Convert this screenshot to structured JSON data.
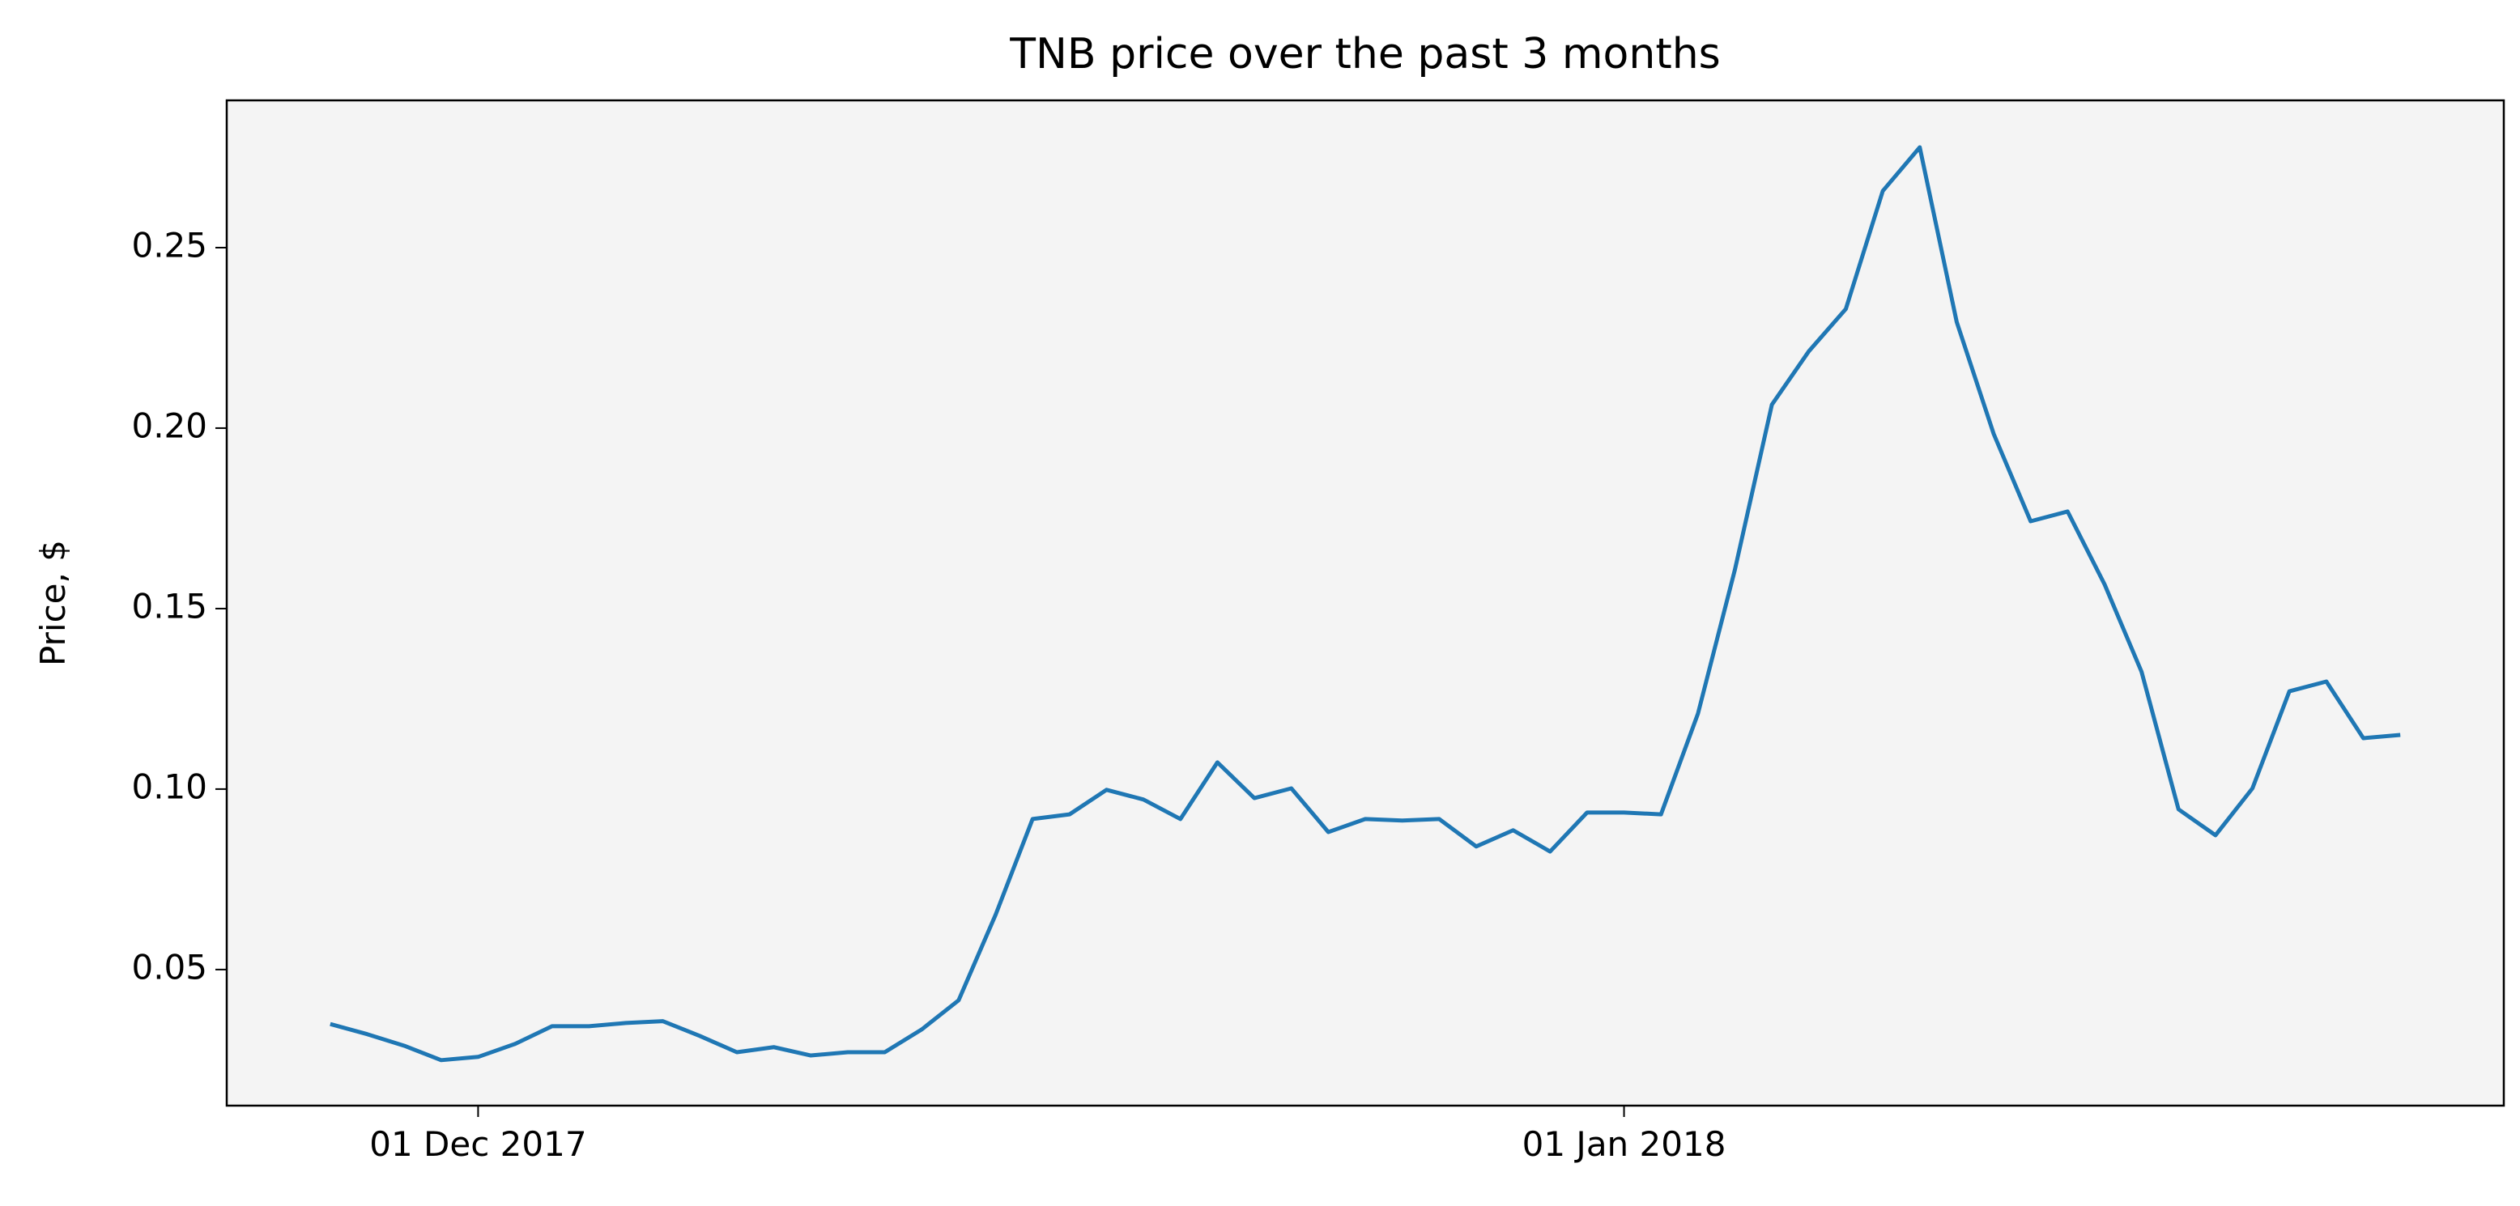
{
  "chart_data": {
    "type": "line",
    "title": "TNB price over the past 3 months",
    "y_label": "Price, $",
    "x": [
      "2017-11-27",
      "2017-11-28",
      "2017-11-29",
      "2017-11-30",
      "2017-12-01",
      "2017-12-02",
      "2017-12-03",
      "2017-12-04",
      "2017-12-05",
      "2017-12-06",
      "2017-12-07",
      "2017-12-08",
      "2017-12-09",
      "2017-12-10",
      "2017-12-11",
      "2017-12-12",
      "2017-12-13",
      "2017-12-14",
      "2017-12-15",
      "2017-12-16",
      "2017-12-17",
      "2017-12-18",
      "2017-12-19",
      "2017-12-20",
      "2017-12-21",
      "2017-12-22",
      "2017-12-23",
      "2017-12-24",
      "2017-12-25",
      "2017-12-26",
      "2017-12-27",
      "2017-12-28",
      "2017-12-29",
      "2017-12-30",
      "2017-12-31",
      "2018-01-01",
      "2018-01-02",
      "2018-01-03",
      "2018-01-04",
      "2018-01-05",
      "2018-01-06",
      "2018-01-07",
      "2018-01-08",
      "2018-01-09",
      "2018-01-10",
      "2018-01-11",
      "2018-01-12",
      "2018-01-13",
      "2018-01-14",
      "2018-01-15",
      "2018-01-16",
      "2018-01-17",
      "2018-01-18",
      "2018-01-19",
      "2018-01-20",
      "2018-01-21",
      "2018-01-22"
    ],
    "values": [
      0.0349,
      0.0321,
      0.0289,
      0.0249,
      0.0258,
      0.0294,
      0.0343,
      0.0343,
      0.0352,
      0.0357,
      0.0316,
      0.0271,
      0.0285,
      0.0262,
      0.0271,
      0.0271,
      0.0334,
      0.0415,
      0.0652,
      0.0917,
      0.093,
      0.0998,
      0.0971,
      0.0917,
      0.1074,
      0.0975,
      0.1002,
      0.0881,
      0.0917,
      0.0913,
      0.0917,
      0.0841,
      0.0886,
      0.0827,
      0.0935,
      0.0935,
      0.093,
      0.1209,
      0.1608,
      0.2065,
      0.2213,
      0.233,
      0.2657,
      0.2778,
      0.2294,
      0.1984,
      0.1742,
      0.1769,
      0.1567,
      0.1325,
      0.0944,
      0.0872,
      0.1002,
      0.1271,
      0.1298,
      0.1141,
      0.115
    ],
    "color": "#1f77b4",
    "background": "#f4f4f4",
    "xlim": [
      "2017-11-24T04:48:00Z",
      "2018-01-24T19:12:00Z"
    ],
    "xticks": [
      {
        "value": "2017-12-01",
        "label": "01 Dec 2017"
      },
      {
        "value": "2018-01-01",
        "label": "01 Jan 2018"
      }
    ],
    "ylim": [
      0.0123,
      0.2908
    ],
    "yticks": [
      0.05,
      {
        "value": 0.1,
        "label": "0.10"
      },
      0.15,
      {
        "value": 0.2,
        "label": "0.20"
      },
      0.25
    ]
  }
}
